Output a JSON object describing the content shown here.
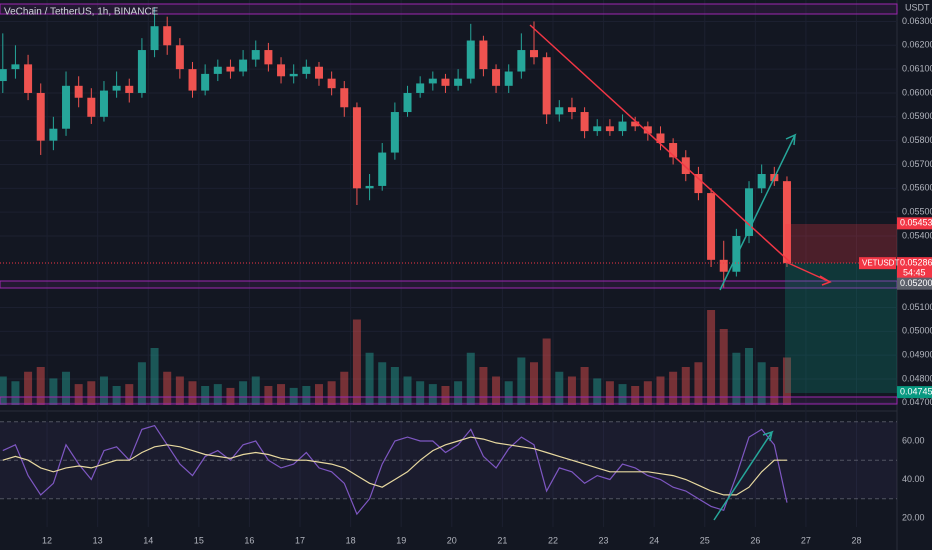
{
  "header": {
    "symbol": "VeChain / TetherUS, 1h, BINANCE",
    "currency": "USDT"
  },
  "chart_data": [
    {
      "type": "candlestick",
      "grid": true,
      "up_color": "#26a69a",
      "down_color": "#ef5350",
      "xlim": [
        11.07,
        28.8
      ],
      "xticks": [
        12,
        13,
        14,
        15,
        16,
        17,
        18,
        19,
        20,
        21,
        22,
        23,
        24,
        25,
        26,
        27,
        28
      ],
      "ylim": [
        0.0467,
        0.0639
      ],
      "yticks": [
        {
          "value": 0.047,
          "label": "0.04700"
        },
        {
          "value": 0.048,
          "label": "0.04800"
        },
        {
          "value": 0.049,
          "label": "0.04900"
        },
        {
          "value": 0.05,
          "label": "0.05000"
        },
        {
          "value": 0.051,
          "label": "0.05100"
        },
        {
          "value": 0.054,
          "label": "0.05400"
        },
        {
          "value": 0.055,
          "label": "0.05500"
        },
        {
          "value": 0.056,
          "label": "0.05600"
        },
        {
          "value": 0.057,
          "label": "0.05700"
        },
        {
          "value": 0.058,
          "label": "0.05800"
        },
        {
          "value": 0.059,
          "label": "0.05900"
        },
        {
          "value": 0.06,
          "label": "0.06000"
        },
        {
          "value": 0.061,
          "label": "0.06100"
        },
        {
          "value": 0.062,
          "label": "0.06200"
        },
        {
          "value": 0.063,
          "label": "0.06300"
        }
      ],
      "x": [
        11.125,
        11.375,
        11.625,
        11.875,
        12.125,
        12.375,
        12.625,
        12.875,
        13.125,
        13.375,
        13.625,
        13.875,
        14.125,
        14.375,
        14.625,
        14.875,
        15.125,
        15.375,
        15.625,
        15.875,
        16.125,
        16.375,
        16.625,
        16.875,
        17.125,
        17.375,
        17.625,
        17.875,
        18.125,
        18.375,
        18.625,
        18.875,
        19.125,
        19.375,
        19.625,
        19.875,
        20.125,
        20.375,
        20.625,
        20.875,
        21.125,
        21.375,
        21.625,
        21.875,
        22.125,
        22.375,
        22.625,
        22.875,
        23.125,
        23.375,
        23.625,
        23.875,
        24.125,
        24.375,
        24.625,
        24.875,
        25.125,
        25.375,
        25.625,
        25.875,
        26.125,
        26.375,
        26.625
      ],
      "open": [
        0.0605,
        0.061,
        0.0612,
        0.06,
        0.058,
        0.0585,
        0.0603,
        0.0598,
        0.059,
        0.0601,
        0.0603,
        0.06,
        0.0618,
        0.0628,
        0.062,
        0.061,
        0.0601,
        0.0608,
        0.0611,
        0.0609,
        0.0614,
        0.0618,
        0.0612,
        0.0607,
        0.0608,
        0.0611,
        0.0606,
        0.0602,
        0.0594,
        0.056,
        0.0561,
        0.0575,
        0.0592,
        0.06,
        0.0604,
        0.0606,
        0.0603,
        0.0606,
        0.0622,
        0.061,
        0.0603,
        0.0609,
        0.0618,
        0.0615,
        0.0591,
        0.0594,
        0.0592,
        0.0584,
        0.0586,
        0.0584,
        0.0588,
        0.0586,
        0.0583,
        0.0579,
        0.0573,
        0.0566,
        0.0558,
        0.053,
        0.0525,
        0.054,
        0.056,
        0.0566,
        0.0563
      ],
      "high": [
        0.0625,
        0.062,
        0.0616,
        0.0604,
        0.059,
        0.0609,
        0.0607,
        0.0602,
        0.0605,
        0.0609,
        0.0606,
        0.0623,
        0.0636,
        0.0632,
        0.0623,
        0.0613,
        0.0612,
        0.0614,
        0.0614,
        0.0618,
        0.0622,
        0.0621,
        0.0615,
        0.0612,
        0.0614,
        0.0613,
        0.0609,
        0.0605,
        0.0596,
        0.0566,
        0.0579,
        0.0596,
        0.0603,
        0.0607,
        0.0609,
        0.0608,
        0.061,
        0.0629,
        0.0624,
        0.0612,
        0.0612,
        0.0625,
        0.063,
        0.0617,
        0.0597,
        0.0598,
        0.0594,
        0.0589,
        0.0589,
        0.0591,
        0.059,
        0.0588,
        0.0586,
        0.0581,
        0.0576,
        0.0569,
        0.056,
        0.0538,
        0.0543,
        0.0563,
        0.057,
        0.0569,
        0.0565
      ],
      "low": [
        0.06,
        0.0606,
        0.0597,
        0.0574,
        0.0576,
        0.0582,
        0.0594,
        0.0587,
        0.0588,
        0.0598,
        0.0596,
        0.0598,
        0.0615,
        0.0616,
        0.0606,
        0.0598,
        0.0599,
        0.0605,
        0.0606,
        0.0607,
        0.0611,
        0.0609,
        0.0604,
        0.0604,
        0.0606,
        0.0603,
        0.0599,
        0.059,
        0.0553,
        0.0555,
        0.0559,
        0.0572,
        0.059,
        0.0598,
        0.0601,
        0.06,
        0.0601,
        0.0604,
        0.0607,
        0.06,
        0.06,
        0.0606,
        0.0612,
        0.0587,
        0.0588,
        0.0589,
        0.0581,
        0.0582,
        0.0582,
        0.0582,
        0.0584,
        0.058,
        0.0576,
        0.057,
        0.0563,
        0.0555,
        0.0527,
        0.0518,
        0.0523,
        0.0537,
        0.0558,
        0.0561,
        0.0527
      ],
      "close": [
        0.061,
        0.0612,
        0.06,
        0.058,
        0.0585,
        0.0603,
        0.0598,
        0.059,
        0.0601,
        0.0603,
        0.06,
        0.0618,
        0.0628,
        0.062,
        0.061,
        0.0601,
        0.0608,
        0.0611,
        0.0609,
        0.0614,
        0.0618,
        0.0612,
        0.0607,
        0.0608,
        0.0611,
        0.0606,
        0.0602,
        0.0594,
        0.056,
        0.0561,
        0.0575,
        0.0592,
        0.06,
        0.0604,
        0.0606,
        0.0603,
        0.0606,
        0.0622,
        0.061,
        0.0603,
        0.0609,
        0.0618,
        0.0615,
        0.0591,
        0.0594,
        0.0592,
        0.0584,
        0.0586,
        0.0584,
        0.0588,
        0.0586,
        0.0583,
        0.0579,
        0.0573,
        0.0566,
        0.0558,
        0.053,
        0.0525,
        0.054,
        0.056,
        0.0566,
        0.0563,
        0.05286
      ],
      "volume": {
        "values": [
          30,
          25,
          35,
          40,
          28,
          35,
          22,
          25,
          30,
          20,
          22,
          45,
          60,
          35,
          30,
          25,
          20,
          22,
          18,
          25,
          30,
          20,
          22,
          18,
          20,
          22,
          25,
          35,
          90,
          55,
          45,
          40,
          30,
          25,
          22,
          20,
          25,
          55,
          40,
          30,
          25,
          50,
          45,
          70,
          35,
          30,
          40,
          28,
          25,
          22,
          20,
          25,
          30,
          35,
          40,
          45,
          100,
          80,
          55,
          60,
          45,
          40,
          50
        ]
      },
      "price_labels": [
        {
          "value": 0.05453,
          "label": "0.05453",
          "color": "#f23645"
        },
        {
          "value": 0.05286,
          "label": "0.05286",
          "color": "#f23645",
          "symbol": "VETUSDT",
          "countdown": "54:45"
        },
        {
          "value": 0.052,
          "label": "0.05200",
          "color": "#5d606b"
        },
        {
          "value": 0.04745,
          "label": "0.04745",
          "color": "#089981"
        }
      ]
    },
    {
      "type": "line",
      "ylim": [
        15.3,
        73.5
      ],
      "levels": [
        70,
        50,
        30
      ],
      "yticks": [
        {
          "value": 20,
          "label": "20.00"
        },
        {
          "value": 40,
          "label": "40.00"
        },
        {
          "value": 60,
          "label": "60.00"
        }
      ],
      "x": [
        11.125,
        11.375,
        11.625,
        11.875,
        12.125,
        12.375,
        12.625,
        12.875,
        13.125,
        13.375,
        13.625,
        13.875,
        14.125,
        14.375,
        14.625,
        14.875,
        15.125,
        15.375,
        15.625,
        15.875,
        16.125,
        16.375,
        16.625,
        16.875,
        17.125,
        17.375,
        17.625,
        17.875,
        18.125,
        18.375,
        18.625,
        18.875,
        19.125,
        19.375,
        19.625,
        19.875,
        20.125,
        20.375,
        20.625,
        20.875,
        21.125,
        21.375,
        21.625,
        21.875,
        22.125,
        22.375,
        22.625,
        22.875,
        23.125,
        23.375,
        23.625,
        23.875,
        24.125,
        24.375,
        24.625,
        24.875,
        25.125,
        25.375,
        25.625,
        25.875,
        26.125,
        26.375,
        26.625
      ],
      "series": [
        {
          "color": "#7e57c2",
          "values": [
            55,
            58,
            42,
            32,
            38,
            58,
            48,
            40,
            55,
            57,
            50,
            66,
            68,
            58,
            48,
            42,
            52,
            55,
            50,
            58,
            60,
            50,
            46,
            48,
            54,
            46,
            44,
            38,
            22,
            30,
            48,
            60,
            62,
            60,
            60,
            54,
            58,
            66,
            52,
            46,
            56,
            62,
            58,
            34,
            46,
            44,
            38,
            42,
            40,
            48,
            46,
            42,
            40,
            36,
            34,
            30,
            26,
            24,
            42,
            62,
            66,
            58,
            28
          ]
        },
        {
          "color": "#e8d9a0",
          "values": [
            50,
            52,
            50,
            46,
            44,
            46,
            47,
            46,
            48,
            50,
            50,
            54,
            57,
            58,
            57,
            55,
            53,
            52,
            51,
            53,
            54,
            53,
            51,
            50,
            50,
            49,
            48,
            46,
            42,
            38,
            36,
            40,
            44,
            50,
            55,
            58,
            60,
            62,
            61,
            59,
            58,
            57,
            56,
            54,
            52,
            50,
            48,
            46,
            44,
            44,
            44,
            44,
            43,
            42,
            40,
            37,
            34,
            32,
            32,
            36,
            44,
            50,
            50
          ]
        }
      ]
    }
  ]
}
